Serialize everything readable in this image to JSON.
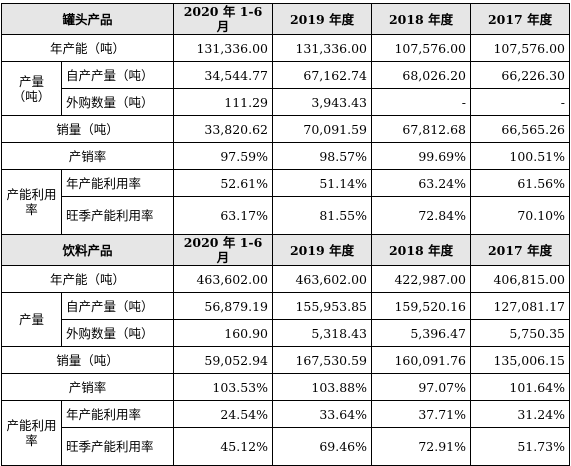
{
  "headers": {
    "period_2020h1": "2020 年 1-6 月",
    "year_2019": "2019 年度",
    "year_2018": "2018 年度",
    "year_2017": "2017 年度"
  },
  "sections": [
    {
      "title": "罐头产品",
      "capacity_label": "年产能（吨）",
      "capacity": [
        "131,336.00",
        "131,336.00",
        "107,576.00",
        "107,576.00"
      ],
      "output_label": "产量（吨）",
      "self_produced_label": "自产产量（吨）",
      "self_produced": [
        "34,544.77",
        "67,162.74",
        "68,026.20",
        "66,226.30"
      ],
      "purchased_label": "外购数量（吨）",
      "purchased": [
        "111.29",
        "3,943.43",
        "-",
        "-"
      ],
      "sales_label": "销量（吨）",
      "sales": [
        "33,820.62",
        "70,091.59",
        "67,812.68",
        "66,565.26"
      ],
      "sell_through_label": "产销率",
      "sell_through": [
        "97.59%",
        "98.57%",
        "99.69%",
        "100.51%"
      ],
      "utilization_label": "产能利用率",
      "annual_util_label": "年产能利用率",
      "annual_util": [
        "52.61%",
        "51.14%",
        "63.24%",
        "61.56%"
      ],
      "peak_util_label": "旺季产能利用率",
      "peak_util": [
        "63.17%",
        "81.55%",
        "72.84%",
        "70.10%"
      ]
    },
    {
      "title": "饮料产品",
      "capacity_label": "年产能（吨）",
      "capacity": [
        "463,602.00",
        "463,602.00",
        "422,987.00",
        "406,815.00"
      ],
      "output_label": "产量",
      "self_produced_label": "自产产量（吨）",
      "self_produced": [
        "56,879.19",
        "155,953.85",
        "159,520.16",
        "127,081.17"
      ],
      "purchased_label": "外购数量（吨）",
      "purchased": [
        "160.90",
        "5,318.43",
        "5,396.47",
        "5,750.35"
      ],
      "sales_label": "销量（吨）",
      "sales": [
        "59,052.94",
        "167,530.59",
        "160,091.76",
        "135,006.15"
      ],
      "sell_through_label": "产销率",
      "sell_through": [
        "103.53%",
        "103.88%",
        "97.07%",
        "101.64%"
      ],
      "utilization_label": "产能利用率",
      "annual_util_label": "年产能利用率",
      "annual_util": [
        "24.54%",
        "33.64%",
        "37.71%",
        "31.24%"
      ],
      "peak_util_label": "旺季产能利用率",
      "peak_util": [
        "45.12%",
        "69.46%",
        "72.91%",
        "51.73%"
      ]
    }
  ]
}
